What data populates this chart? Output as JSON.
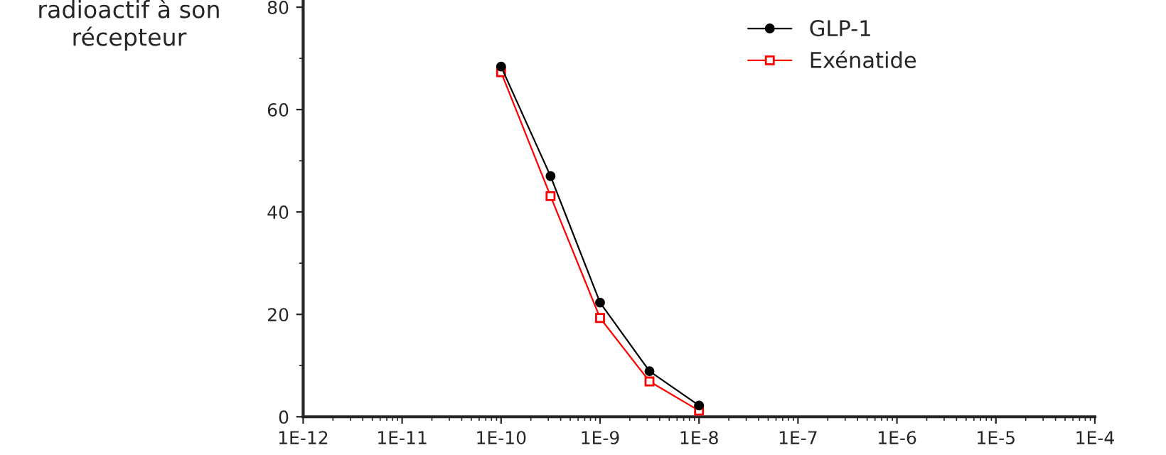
{
  "chart_data": {
    "type": "line",
    "ylabel": "radioactif à son\nrécepteur",
    "log": "x",
    "xlim": [
      1e-12,
      0.0001
    ],
    "xticks": [
      {
        "value": 1e-12,
        "label": "1E-12"
      },
      {
        "value": 1e-11,
        "label": "1E-11"
      },
      {
        "value": 1e-10,
        "label": "1E-10"
      },
      {
        "value": 1e-09,
        "label": "1E-9"
      },
      {
        "value": 1e-08,
        "label": "1E-8"
      },
      {
        "value": 1e-07,
        "label": "1E-7"
      },
      {
        "value": 1e-06,
        "label": "1E-6"
      },
      {
        "value": 1e-05,
        "label": "1E-5"
      },
      {
        "value": 0.0001,
        "label": "1E-4"
      }
    ],
    "ylim": [
      0,
      81.4
    ],
    "yticks": [
      0,
      20,
      40,
      60,
      80
    ],
    "grid": false,
    "legend": "top right",
    "series": [
      {
        "name": "GLP-1",
        "color": "#000000",
        "marker": "circle",
        "x": [
          1e-10,
          3.16e-10,
          1e-09,
          3.16e-09,
          1e-08
        ],
        "values": [
          68.4,
          47.0,
          22.3,
          8.9,
          2.2
        ]
      },
      {
        "name": "Exénatide",
        "color": "#ff0000",
        "marker": "square",
        "x": [
          1e-10,
          3.16e-10,
          1e-09,
          3.16e-09,
          1e-08
        ],
        "values": [
          67.3,
          43.1,
          19.3,
          6.9,
          1.2
        ]
      }
    ]
  }
}
